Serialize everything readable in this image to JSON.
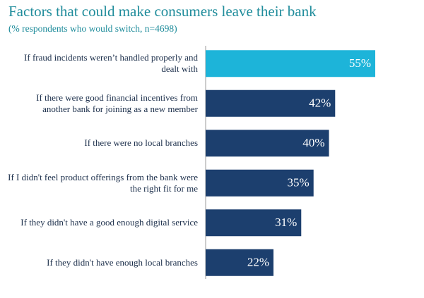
{
  "chart_data": {
    "type": "barh",
    "title": "Factors that could make consumers leave their bank",
    "subtitle": "(% respondents who would switch, n=4698)",
    "categories": [
      "If fraud incidents weren’t handled properly and dealt with",
      "If there were good financial incentives from another bank for joining as a new member",
      "If there were no local branches",
      "If I didn't feel product offerings from the bank were the right fit for me",
      "If they didn't have a good enough digital service",
      "If they didn't have enough local branches"
    ],
    "values": [
      55,
      42,
      40,
      35,
      31,
      22
    ],
    "value_labels": [
      "55%",
      "42%",
      "40%",
      "35%",
      "31%",
      "22%"
    ],
    "colors": [
      "#1db4d9",
      "#1c3f6e",
      "#1c3f6e",
      "#1c3f6e",
      "#1c3f6e",
      "#1c3f6e"
    ]
  }
}
